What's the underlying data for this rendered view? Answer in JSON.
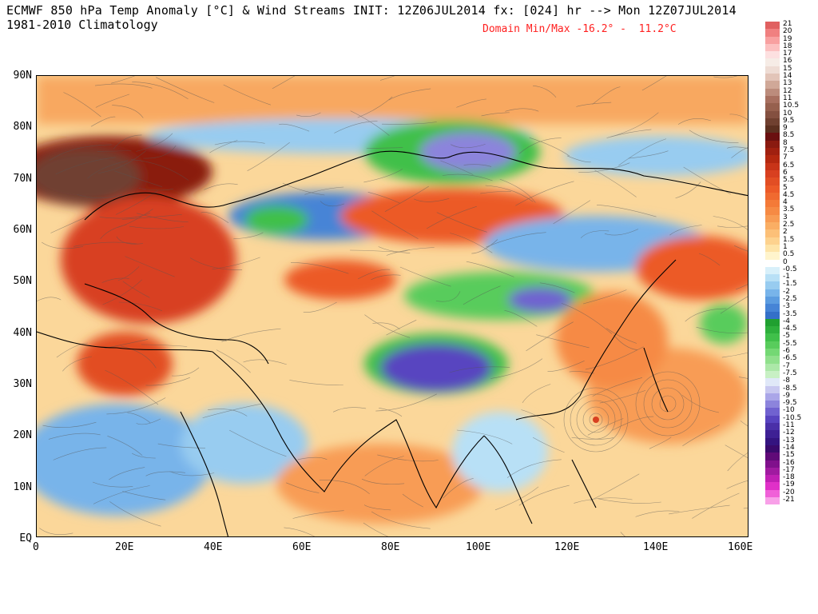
{
  "header": {
    "title": "ECMWF 850 hPa Temp Anomaly [°C] & Wind Streams INIT: 12Z06JUL2014 fx: [024] hr --> Mon 12Z07JUL2014",
    "subtitle": "1981-2010 Climatology",
    "domain_minmax": "Domain Min/Max -16.2° -  11.2°C"
  },
  "axes": {
    "lat_labels": [
      "90N",
      "80N",
      "70N",
      "60N",
      "50N",
      "40N",
      "30N",
      "20N",
      "10N",
      "EQ"
    ],
    "lon_labels": [
      "0",
      "20E",
      "40E",
      "60E",
      "80E",
      "100E",
      "120E",
      "140E",
      "160E"
    ]
  },
  "colorbar": {
    "labels": [
      "21",
      "20",
      "19",
      "18",
      "17",
      "16",
      "15",
      "14",
      "13",
      "12",
      "11",
      "10.5",
      "10",
      "9.5",
      "9",
      "8.5",
      "8",
      "7.5",
      "7",
      "6.5",
      "6",
      "5.5",
      "5",
      "4.5",
      "4",
      "3.5",
      "3",
      "2.5",
      "2",
      "1.5",
      "1",
      "0.5",
      "0",
      "-0.5",
      "-1",
      "-1.5",
      "-2",
      "-2.5",
      "-3",
      "-3.5",
      "-4",
      "-4.5",
      "-5",
      "-5.5",
      "-6",
      "-6.5",
      "-7",
      "-7.5",
      "-8",
      "-8.5",
      "-9",
      "-9.5",
      "-10",
      "-10.5",
      "-11",
      "-12",
      "-13",
      "-14",
      "-15",
      "-16",
      "-17",
      "-18",
      "-19",
      "-20",
      "-21"
    ],
    "colors": [
      "#e06060",
      "#f08080",
      "#f8a0a0",
      "#fcc0c0",
      "#fde0e0",
      "#f6ece6",
      "#eedcd4",
      "#e2c4b8",
      "#d0a898",
      "#bc8c7c",
      "#a87060",
      "#96604e",
      "#845040",
      "#704030",
      "#5c3020",
      "#6a1010",
      "#8a1a10",
      "#a02010",
      "#b42810",
      "#c83418",
      "#d84020",
      "#e24e24",
      "#ec5a28",
      "#f06a30",
      "#f47a38",
      "#f68a44",
      "#f89c54",
      "#faae64",
      "#fcc078",
      "#fdd28e",
      "#fee4a8",
      "#fff4cc",
      "#ffffff",
      "#d8f0fa",
      "#b8e0f6",
      "#98ccf0",
      "#78b4ea",
      "#5c9ce0",
      "#4684d6",
      "#3470c8",
      "#20a030",
      "#2eb03c",
      "#40c04a",
      "#58cc5c",
      "#74d874",
      "#90e08c",
      "#ace8a8",
      "#c8f0c4",
      "#e0e8f8",
      "#c8c8f0",
      "#aaa6e8",
      "#8c84dc",
      "#7062d0",
      "#5844c0",
      "#4a30a8",
      "#3e2094",
      "#341480",
      "#3a0a6c",
      "#600a78",
      "#80108c",
      "#a01aa0",
      "#c020b4",
      "#e030c8",
      "#f060d8",
      "#f8a0e8"
    ]
  },
  "map": {
    "title_units": "°C"
  }
}
